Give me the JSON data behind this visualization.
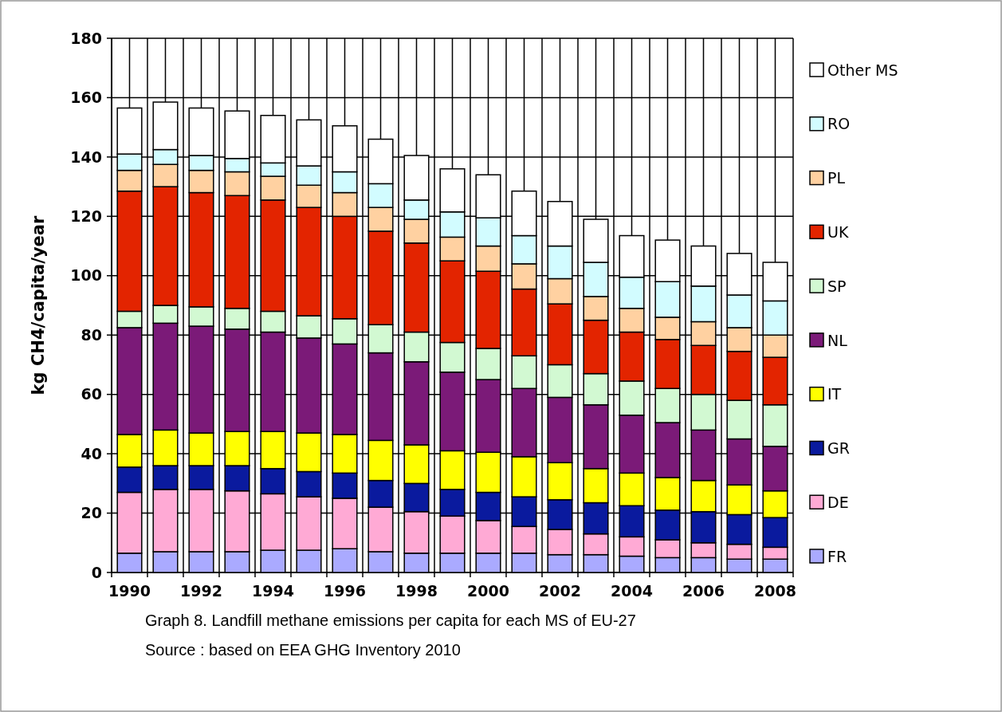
{
  "chart_data": {
    "type": "bar",
    "stacked": true,
    "title": "Graph 8. Landfill methane emissions per capita for each MS of EU-27",
    "annotations": [
      "Source : based on EEA GHG Inventory 2010"
    ],
    "ylabel": "kg CH4/capita/year",
    "categories": [
      "1990",
      null,
      "1992",
      null,
      "1994",
      null,
      "1996",
      null,
      "1998",
      null,
      "2000",
      null,
      "2002",
      null,
      "2004",
      null,
      "2006",
      null,
      "2008"
    ],
    "ylim": [
      0,
      180
    ],
    "yticks": [
      0,
      20,
      40,
      60,
      80,
      100,
      120,
      140,
      160,
      180
    ],
    "grid": true,
    "legend": "right",
    "series": [
      {
        "name": "FR",
        "color": "#aaaaff",
        "values": [
          6.5,
          7,
          7,
          7,
          7.5,
          7.5,
          8,
          7,
          6.5,
          6.5,
          6.5,
          6.5,
          6,
          6,
          5.5,
          5,
          5,
          4.5,
          4.5
        ]
      },
      {
        "name": "DE",
        "color": "#ffaad5",
        "values": [
          20.5,
          21,
          21,
          20.5,
          19,
          18,
          17,
          15,
          14,
          12.5,
          11,
          9,
          8.5,
          7,
          6.5,
          6,
          5,
          5,
          4
        ]
      },
      {
        "name": "GR",
        "color": "#0a1a9e",
        "values": [
          8.5,
          8,
          8,
          8.5,
          8.5,
          8.5,
          8.5,
          9,
          9.5,
          9,
          9.5,
          10,
          10,
          10.5,
          10.5,
          10,
          10.5,
          10,
          10
        ]
      },
      {
        "name": "IT",
        "color": "#ffff00",
        "values": [
          11,
          12,
          11,
          11.5,
          12.5,
          13,
          13,
          13.5,
          13,
          13,
          13.5,
          13.5,
          12.5,
          11.5,
          11,
          11,
          10.5,
          10,
          9
        ]
      },
      {
        "name": "NL",
        "color": "#7b1a78",
        "values": [
          36,
          36,
          36,
          34.5,
          33.5,
          32,
          30.5,
          29.5,
          28,
          26.5,
          24.5,
          23,
          22,
          21.5,
          19.5,
          18.5,
          17,
          15.5,
          15
        ]
      },
      {
        "name": "SP",
        "color": "#d2f9d2",
        "values": [
          5.5,
          6,
          6.5,
          7,
          7,
          7.5,
          8.5,
          9.5,
          10,
          10,
          10.5,
          11,
          11,
          10.5,
          11.5,
          11.5,
          12,
          13,
          14
        ]
      },
      {
        "name": "UK",
        "color": "#e32400",
        "values": [
          40.5,
          40,
          38.5,
          38,
          37.5,
          36.5,
          34.5,
          31.5,
          30,
          27.5,
          26,
          22.5,
          20.5,
          18,
          16.5,
          16.5,
          16.5,
          16.5,
          16
        ]
      },
      {
        "name": "PL",
        "color": "#ffd1a1",
        "values": [
          7,
          7.5,
          7.5,
          8,
          8,
          7.5,
          8,
          8,
          8,
          8,
          8.5,
          8.5,
          8.5,
          8,
          8,
          7.5,
          8,
          8,
          7.5
        ]
      },
      {
        "name": "RO",
        "color": "#d2fcff",
        "values": [
          5.5,
          5,
          5,
          4.5,
          4.5,
          6.5,
          7,
          8,
          6.5,
          8.5,
          9.5,
          9.5,
          11,
          11.5,
          10.5,
          12,
          12,
          11,
          11.5
        ]
      },
      {
        "name": "Other MS",
        "color": "#ffffff",
        "values": [
          15.5,
          16,
          16,
          16,
          16,
          15.5,
          15.5,
          15,
          15,
          14.5,
          14.5,
          15,
          15,
          14.5,
          14,
          14,
          13.5,
          14,
          13
        ]
      }
    ]
  }
}
